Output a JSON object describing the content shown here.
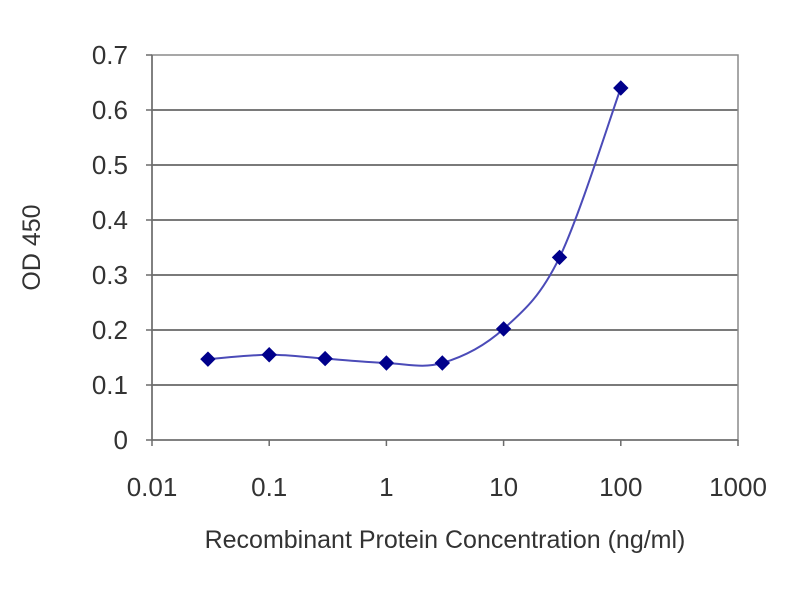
{
  "chart_data": {
    "type": "line",
    "xlabel": "Recombinant Protein Concentration (ng/ml)",
    "ylabel": "OD 450",
    "x_scale": "log",
    "xlim": [
      0.01,
      1000
    ],
    "ylim": [
      0,
      0.7
    ],
    "x_ticks": [
      "0.01",
      "0.1",
      "1",
      "10",
      "100",
      "1000"
    ],
    "x_tick_values": [
      0.01,
      0.1,
      1,
      10,
      100,
      1000
    ],
    "y_ticks": [
      "0",
      "0.1",
      "0.2",
      "0.3",
      "0.4",
      "0.5",
      "0.6",
      "0.7"
    ],
    "y_tick_values": [
      0,
      0.1,
      0.2,
      0.3,
      0.4,
      0.5,
      0.6,
      0.7
    ],
    "grid": "horizontal",
    "legend": "none",
    "series": [
      {
        "color": "#00008b",
        "marker": "diamond",
        "x": [
          0.03,
          0.1,
          0.3,
          1,
          3,
          10,
          30,
          100
        ],
        "y": [
          0.147,
          0.155,
          0.148,
          0.14,
          0.14,
          0.202,
          0.332,
          0.64
        ]
      }
    ]
  }
}
